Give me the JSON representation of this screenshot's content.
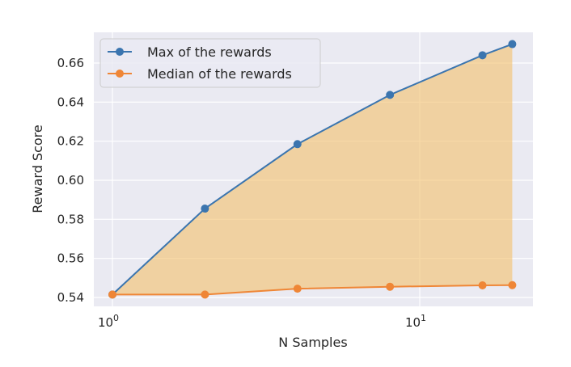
{
  "chart_data": {
    "type": "line",
    "x_scale": "log",
    "x": [
      1,
      2,
      4,
      8,
      16,
      20
    ],
    "xlabel": "N Samples",
    "ylabel": "Reward Score",
    "ylim": [
      0.535,
      0.675
    ],
    "yticks": [
      "0.54",
      "0.56",
      "0.58",
      "0.60",
      "0.62",
      "0.64",
      "0.66"
    ],
    "xticks": [
      {
        "value": 1,
        "base": "10",
        "exp": "0"
      },
      {
        "value": 10,
        "base": "10",
        "exp": "1"
      }
    ],
    "grid": true,
    "legend_position": "top-left",
    "fill_between": {
      "color": "#f4c06a",
      "note_series": [
        "Max of the rewards",
        "Median of the rewards"
      ]
    },
    "series": [
      {
        "name": "Max of the rewards",
        "color": "#3b75af",
        "values": [
          0.5415,
          0.5855,
          0.6185,
          0.6437,
          0.664,
          0.6697
        ]
      },
      {
        "name": "Median of the rewards",
        "color": "#ef8636",
        "values": [
          0.5415,
          0.5415,
          0.5445,
          0.5455,
          0.5462,
          0.5463
        ]
      }
    ]
  }
}
